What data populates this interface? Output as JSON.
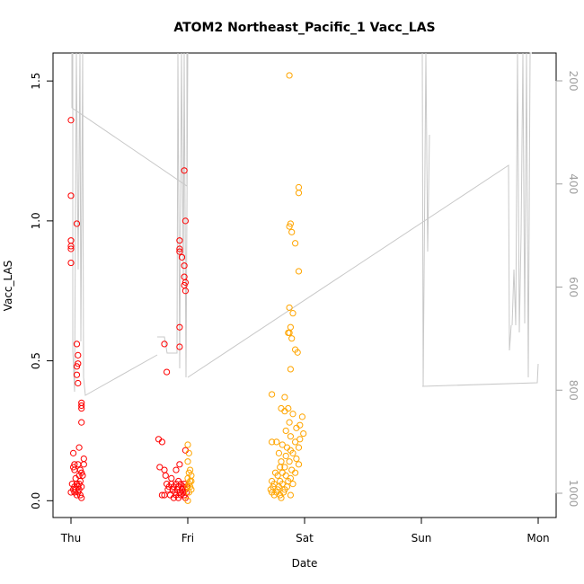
{
  "chart_data": {
    "type": "scatter",
    "title": "ATOM2 Northeast_Pacific_1 Vacc_LAS",
    "xlabel": "Date",
    "ylabel": "Vacc_LAS",
    "x_tick_labels": [
      "Thu",
      "Fri",
      "Sat",
      "Sun",
      "Mon"
    ],
    "xlim": [
      -0.2,
      4.2
    ],
    "ylim": [
      -0.06,
      1.6
    ],
    "y_ticks": [
      "0.0",
      "0.5",
      "1.0",
      "1.5"
    ],
    "y2_ticks": [
      "200",
      "400",
      "600",
      "800",
      "1000"
    ],
    "y2lim": [
      1052,
      139
    ],
    "y2_label": "",
    "grid": false,
    "colors": {
      "series_red": "#ff0000",
      "series_orange": "#ffa500",
      "line": "#c8c8c8",
      "right_axis": "#a0a0a0"
    },
    "series": [
      {
        "color": "series_red",
        "points": [
          [
            0.0,
            1.36
          ],
          [
            0.0,
            1.09
          ],
          [
            0.0,
            0.93
          ],
          [
            0.0,
            0.91
          ],
          [
            0.0,
            0.9
          ],
          [
            0.0,
            0.85
          ],
          [
            0.05,
            0.99
          ],
          [
            0.05,
            0.56
          ],
          [
            0.06,
            0.52
          ],
          [
            0.06,
            0.49
          ],
          [
            0.05,
            0.48
          ],
          [
            0.05,
            0.45
          ],
          [
            0.06,
            0.42
          ],
          [
            0.09,
            0.35
          ],
          [
            0.09,
            0.34
          ],
          [
            0.09,
            0.33
          ],
          [
            0.09,
            0.28
          ],
          [
            0.07,
            0.19
          ],
          [
            0.02,
            0.17
          ],
          [
            0.11,
            0.15
          ],
          [
            0.03,
            0.13
          ],
          [
            0.06,
            0.13
          ],
          [
            0.11,
            0.13
          ],
          [
            0.02,
            0.12
          ],
          [
            0.03,
            0.11
          ],
          [
            0.08,
            0.11
          ],
          [
            0.09,
            0.1
          ],
          [
            0.07,
            0.09
          ],
          [
            0.1,
            0.09
          ],
          [
            0.04,
            0.08
          ],
          [
            0.08,
            0.07
          ],
          [
            0.01,
            0.06
          ],
          [
            0.05,
            0.06
          ],
          [
            0.07,
            0.06
          ],
          [
            0.03,
            0.05
          ],
          [
            0.06,
            0.05
          ],
          [
            0.09,
            0.05
          ],
          [
            0.02,
            0.04
          ],
          [
            0.04,
            0.04
          ],
          [
            0.07,
            0.04
          ],
          [
            0.0,
            0.03
          ],
          [
            0.03,
            0.03
          ],
          [
            0.06,
            0.03
          ],
          [
            0.08,
            0.02
          ],
          [
            0.09,
            0.01
          ],
          [
            0.05,
            0.02
          ],
          [
            0.97,
            1.18
          ],
          [
            0.98,
            1.0
          ],
          [
            0.93,
            0.93
          ],
          [
            0.93,
            0.9
          ],
          [
            0.93,
            0.89
          ],
          [
            0.95,
            0.87
          ],
          [
            0.97,
            0.84
          ],
          [
            0.97,
            0.8
          ],
          [
            0.98,
            0.78
          ],
          [
            0.97,
            0.77
          ],
          [
            0.98,
            0.75
          ],
          [
            0.93,
            0.62
          ],
          [
            0.8,
            0.56
          ],
          [
            0.93,
            0.55
          ],
          [
            0.82,
            0.46
          ],
          [
            0.75,
            0.22
          ],
          [
            0.78,
            0.21
          ],
          [
            0.98,
            0.18
          ],
          [
            0.93,
            0.13
          ],
          [
            0.76,
            0.12
          ],
          [
            0.8,
            0.11
          ],
          [
            0.9,
            0.11
          ],
          [
            0.81,
            0.09
          ],
          [
            0.86,
            0.08
          ],
          [
            0.92,
            0.07
          ],
          [
            0.82,
            0.06
          ],
          [
            0.86,
            0.06
          ],
          [
            0.9,
            0.06
          ],
          [
            0.94,
            0.06
          ],
          [
            0.97,
            0.06
          ],
          [
            0.84,
            0.05
          ],
          [
            0.88,
            0.05
          ],
          [
            0.92,
            0.05
          ],
          [
            0.96,
            0.05
          ],
          [
            0.99,
            0.05
          ],
          [
            0.83,
            0.04
          ],
          [
            0.87,
            0.04
          ],
          [
            0.91,
            0.04
          ],
          [
            0.95,
            0.04
          ],
          [
            0.98,
            0.04
          ],
          [
            0.89,
            0.03
          ],
          [
            0.93,
            0.03
          ],
          [
            0.96,
            0.03
          ],
          [
            0.99,
            0.03
          ],
          [
            0.78,
            0.02
          ],
          [
            0.85,
            0.02
          ],
          [
            0.9,
            0.02
          ],
          [
            0.94,
            0.02
          ],
          [
            0.97,
            0.02
          ],
          [
            0.92,
            0.01
          ],
          [
            0.98,
            0.01
          ],
          [
            0.8,
            0.02
          ],
          [
            0.88,
            0.01
          ]
        ]
      },
      {
        "color": "series_orange",
        "points": [
          [
            1.0,
            0.2
          ],
          [
            1.01,
            0.17
          ],
          [
            1.0,
            0.14
          ],
          [
            1.02,
            0.11
          ],
          [
            1.01,
            0.1
          ],
          [
            1.03,
            0.09
          ],
          [
            1.0,
            0.08
          ],
          [
            1.02,
            0.07
          ],
          [
            1.03,
            0.07
          ],
          [
            1.01,
            0.06
          ],
          [
            1.02,
            0.05
          ],
          [
            1.0,
            0.05
          ],
          [
            1.03,
            0.04
          ],
          [
            1.01,
            0.03
          ],
          [
            1.0,
            0.0
          ],
          [
            1.87,
            1.52
          ],
          [
            1.88,
            0.99
          ],
          [
            1.89,
            0.96
          ],
          [
            1.87,
            0.98
          ],
          [
            1.92,
            0.92
          ],
          [
            1.95,
            1.12
          ],
          [
            1.95,
            1.1
          ],
          [
            1.95,
            0.82
          ],
          [
            1.87,
            0.69
          ],
          [
            1.9,
            0.67
          ],
          [
            1.88,
            0.62
          ],
          [
            1.86,
            0.6
          ],
          [
            1.87,
            0.6
          ],
          [
            1.89,
            0.58
          ],
          [
            1.92,
            0.54
          ],
          [
            1.94,
            0.53
          ],
          [
            1.88,
            0.47
          ],
          [
            1.72,
            0.38
          ],
          [
            1.83,
            0.37
          ],
          [
            1.86,
            0.33
          ],
          [
            1.8,
            0.33
          ],
          [
            1.83,
            0.32
          ],
          [
            1.9,
            0.31
          ],
          [
            1.98,
            0.3
          ],
          [
            1.87,
            0.28
          ],
          [
            1.96,
            0.27
          ],
          [
            1.93,
            0.26
          ],
          [
            1.84,
            0.25
          ],
          [
            1.99,
            0.24
          ],
          [
            1.88,
            0.23
          ],
          [
            1.96,
            0.22
          ],
          [
            1.72,
            0.21
          ],
          [
            1.76,
            0.21
          ],
          [
            1.92,
            0.21
          ],
          [
            1.81,
            0.2
          ],
          [
            1.85,
            0.19
          ],
          [
            1.95,
            0.19
          ],
          [
            1.88,
            0.18
          ],
          [
            1.78,
            0.17
          ],
          [
            1.9,
            0.17
          ],
          [
            1.84,
            0.16
          ],
          [
            1.93,
            0.15
          ],
          [
            1.8,
            0.14
          ],
          [
            1.87,
            0.14
          ],
          [
            1.95,
            0.13
          ],
          [
            1.79,
            0.12
          ],
          [
            1.83,
            0.12
          ],
          [
            1.89,
            0.11
          ],
          [
            1.75,
            0.1
          ],
          [
            1.81,
            0.1
          ],
          [
            1.92,
            0.1
          ],
          [
            1.77,
            0.09
          ],
          [
            1.84,
            0.09
          ],
          [
            1.88,
            0.08
          ],
          [
            1.72,
            0.07
          ],
          [
            1.79,
            0.07
          ],
          [
            1.86,
            0.07
          ],
          [
            1.74,
            0.06
          ],
          [
            1.81,
            0.06
          ],
          [
            1.9,
            0.06
          ],
          [
            1.73,
            0.05
          ],
          [
            1.78,
            0.05
          ],
          [
            1.85,
            0.05
          ],
          [
            1.71,
            0.04
          ],
          [
            1.77,
            0.04
          ],
          [
            1.83,
            0.04
          ],
          [
            1.72,
            0.03
          ],
          [
            1.76,
            0.03
          ],
          [
            1.82,
            0.03
          ],
          [
            1.74,
            0.02
          ],
          [
            1.79,
            0.02
          ],
          [
            1.88,
            0.02
          ],
          [
            1.8,
            0.01
          ]
        ]
      }
    ]
  }
}
